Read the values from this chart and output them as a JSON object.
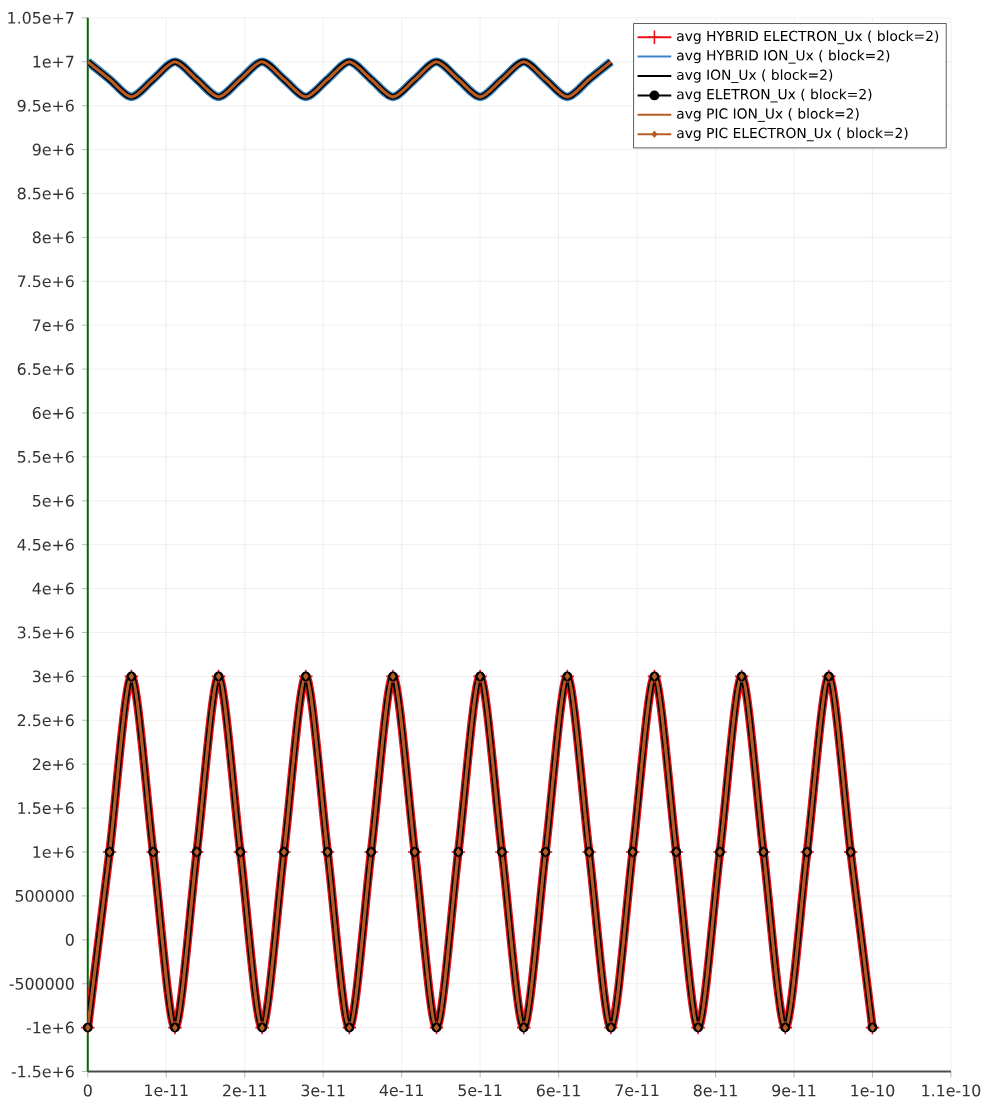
{
  "chart_data": {
    "type": "line",
    "xlim": [
      0,
      1.1e-10
    ],
    "ylim": [
      -1500000,
      10500000
    ],
    "xticks": [
      {
        "value": 0,
        "label": "0"
      },
      {
        "value": 1e-11,
        "label": "1e-11"
      },
      {
        "value": 2e-11,
        "label": "2e-11"
      },
      {
        "value": 3e-11,
        "label": "3e-11"
      },
      {
        "value": 4e-11,
        "label": "4e-11"
      },
      {
        "value": 5e-11,
        "label": "5e-11"
      },
      {
        "value": 6e-11,
        "label": "6e-11"
      },
      {
        "value": 7e-11,
        "label": "7e-11"
      },
      {
        "value": 8e-11,
        "label": "8e-11"
      },
      {
        "value": 9e-11,
        "label": "9e-11"
      },
      {
        "value": 1e-10,
        "label": "1e-10"
      },
      {
        "value": 1.1e-10,
        "label": "1.1e-10"
      }
    ],
    "yticks": [
      {
        "value": -1500000,
        "label": "-1.5e+6"
      },
      {
        "value": -1000000,
        "label": "-1e+6"
      },
      {
        "value": -500000,
        "label": "-500000"
      },
      {
        "value": 0,
        "label": "0"
      },
      {
        "value": 500000,
        "label": "500000"
      },
      {
        "value": 1000000,
        "label": "1e+6"
      },
      {
        "value": 1500000,
        "label": "1.5e+6"
      },
      {
        "value": 2000000,
        "label": "2e+6"
      },
      {
        "value": 2500000,
        "label": "2.5e+6"
      },
      {
        "value": 3000000,
        "label": "3e+6"
      },
      {
        "value": 3500000,
        "label": "3.5e+6"
      },
      {
        "value": 4000000,
        "label": "4e+6"
      },
      {
        "value": 4500000,
        "label": "4.5e+6"
      },
      {
        "value": 5000000,
        "label": "5e+6"
      },
      {
        "value": 5500000,
        "label": "5.5e+6"
      },
      {
        "value": 6000000,
        "label": "6e+6"
      },
      {
        "value": 6500000,
        "label": "6.5e+6"
      },
      {
        "value": 7000000,
        "label": "7e+6"
      },
      {
        "value": 7500000,
        "label": "7.5e+6"
      },
      {
        "value": 8000000,
        "label": "8e+6"
      },
      {
        "value": 8500000,
        "label": "8.5e+6"
      },
      {
        "value": 9000000,
        "label": "9e+6"
      },
      {
        "value": 9500000,
        "label": "9.5e+6"
      },
      {
        "value": 10000000,
        "label": "1e+7"
      },
      {
        "value": 10500000,
        "label": "1.05e+7"
      }
    ],
    "grid": true,
    "legend": "top right",
    "x": [
      0,
      2.778e-12,
      5.556e-12,
      8.333e-12,
      1.111e-11,
      1.389e-11,
      1.667e-11,
      1.944e-11,
      2.222e-11,
      2.5e-11,
      2.778e-11,
      3.056e-11,
      3.333e-11,
      3.611e-11,
      3.889e-11,
      4.167e-11,
      4.444e-11,
      4.722e-11,
      5e-11,
      5.278e-11,
      5.556e-11,
      5.833e-11,
      6.111e-11,
      6.389e-11,
      6.667e-11,
      6.944e-11,
      7.222e-11,
      7.5e-11,
      7.778e-11,
      8.056e-11,
      8.333e-11,
      8.611e-11,
      8.889e-11,
      9.167e-11,
      9.444e-11,
      9.722e-11,
      1e-10
    ],
    "series": [
      {
        "name": "avg HYBRID ELECTRON_Ux ( block=2)",
        "color": "#e8101a",
        "marker": "cross",
        "values": [
          -1000000,
          1000000,
          3000000,
          1000000,
          -1000000,
          1000000,
          3000000,
          1000000,
          -1000000,
          1000000,
          3000000,
          1000000,
          -1000000,
          1000000,
          3000000,
          1000000,
          -1000000,
          1000000,
          3000000,
          1000000,
          -1000000,
          1000000,
          3000000,
          1000000,
          -1000000,
          1000000,
          3000000,
          1000000,
          -1000000,
          1000000,
          3000000,
          1000000,
          -1000000,
          1000000,
          3000000,
          1000000,
          -1000000
        ]
      },
      {
        "name": "avg HYBRID ION_Ux ( block=2)",
        "color": "#3a87c8",
        "x": [
          0,
          2.778e-12,
          5.556e-12,
          8.333e-12,
          1.111e-11,
          1.389e-11,
          1.667e-11,
          1.944e-11,
          2.222e-11,
          2.5e-11,
          2.778e-11,
          3.056e-11,
          3.333e-11,
          3.611e-11,
          3.889e-11,
          4.167e-11,
          4.444e-11,
          4.722e-11,
          5e-11,
          5.278e-11,
          5.556e-11,
          5.833e-11,
          6.111e-11,
          6.389e-11,
          6.667e-11
        ],
        "values": [
          10000000,
          9800000,
          9600000,
          9800000,
          10000000,
          9800000,
          9600000,
          9800000,
          10000000,
          9800000,
          9600000,
          9800000,
          10000000,
          9800000,
          9600000,
          9800000,
          10000000,
          9800000,
          9600000,
          9800000,
          10000000,
          9800000,
          9600000,
          9800000,
          10000000
        ]
      },
      {
        "name": "avg ION_Ux ( block=2)",
        "color": "#000000",
        "x": [
          0,
          2.778e-12,
          5.556e-12,
          8.333e-12,
          1.111e-11,
          1.389e-11,
          1.667e-11,
          1.944e-11,
          2.222e-11,
          2.5e-11,
          2.778e-11,
          3.056e-11,
          3.333e-11,
          3.611e-11,
          3.889e-11,
          4.167e-11,
          4.444e-11,
          4.722e-11,
          5e-11,
          5.278e-11,
          5.556e-11,
          5.833e-11,
          6.111e-11,
          6.389e-11,
          6.667e-11
        ],
        "values": [
          10000000,
          9800000,
          9600000,
          9800000,
          10000000,
          9800000,
          9600000,
          9800000,
          10000000,
          9800000,
          9600000,
          9800000,
          10000000,
          9800000,
          9600000,
          9800000,
          10000000,
          9800000,
          9600000,
          9800000,
          10000000,
          9800000,
          9600000,
          9800000,
          10000000
        ]
      },
      {
        "name": "avg ELETRON_Ux ( block=2)",
        "color": "#000000",
        "marker": "circle",
        "values": [
          -1000000,
          1000000,
          3000000,
          1000000,
          -1000000,
          1000000,
          3000000,
          1000000,
          -1000000,
          1000000,
          3000000,
          1000000,
          -1000000,
          1000000,
          3000000,
          1000000,
          -1000000,
          1000000,
          3000000,
          1000000,
          -1000000,
          1000000,
          3000000,
          1000000,
          -1000000,
          1000000,
          3000000,
          1000000,
          -1000000,
          1000000,
          3000000,
          1000000,
          -1000000,
          1000000,
          3000000,
          1000000,
          -1000000
        ]
      },
      {
        "name": "avg PIC ION_Ux ( block=2)",
        "color": "#b85c25",
        "x": [
          0,
          2.778e-12,
          5.556e-12,
          8.333e-12,
          1.111e-11,
          1.389e-11,
          1.667e-11,
          1.944e-11,
          2.222e-11,
          2.5e-11,
          2.778e-11,
          3.056e-11,
          3.333e-11,
          3.611e-11,
          3.889e-11,
          4.167e-11,
          4.444e-11,
          4.722e-11,
          5e-11,
          5.278e-11,
          5.556e-11,
          5.833e-11,
          6.111e-11,
          6.389e-11,
          6.667e-11
        ],
        "values": [
          10000000,
          9800000,
          9600000,
          9800000,
          10000000,
          9800000,
          9600000,
          9800000,
          10000000,
          9800000,
          9600000,
          9800000,
          10000000,
          9800000,
          9600000,
          9800000,
          10000000,
          9800000,
          9600000,
          9800000,
          10000000,
          9800000,
          9600000,
          9800000,
          10000000
        ]
      },
      {
        "name": "avg PIC ELECTRON_Ux ( block=2)",
        "color": "#b85c25",
        "marker": "diamond",
        "values": [
          -1000000,
          1000000,
          3000000,
          1000000,
          -1000000,
          1000000,
          3000000,
          1000000,
          -1000000,
          1000000,
          3000000,
          1000000,
          -1000000,
          1000000,
          3000000,
          1000000,
          -1000000,
          1000000,
          3000000,
          1000000,
          -1000000,
          1000000,
          3000000,
          1000000,
          -1000000,
          1000000,
          3000000,
          1000000,
          -1000000,
          1000000,
          3000000,
          1000000,
          -1000000,
          1000000,
          3000000,
          1000000,
          -1000000
        ]
      }
    ]
  }
}
